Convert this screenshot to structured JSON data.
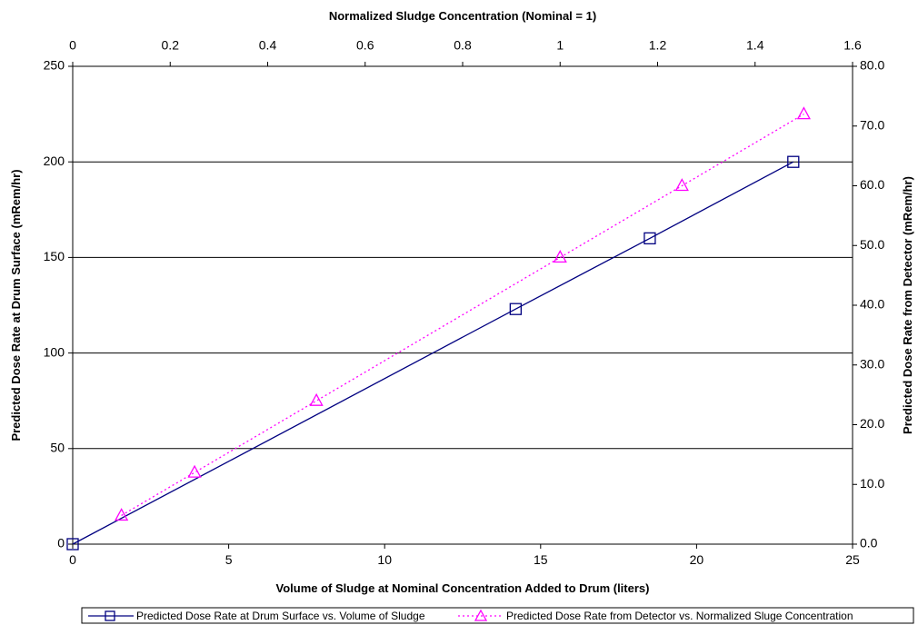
{
  "chart_data": {
    "type": "scatter",
    "title": "",
    "grid": true,
    "legend_placement": "bottom-right",
    "axes": {
      "x_bottom": {
        "label": "Volume of Sludge at Nominal Concentration Added to Drum (liters)",
        "range": [
          0,
          25
        ],
        "ticks": [
          "0",
          "5",
          "10",
          "15",
          "20",
          "25"
        ]
      },
      "x_top": {
        "label": "Normalized Sludge Concentration (Nominal = 1)",
        "range": [
          0,
          1.6
        ],
        "ticks": [
          "0",
          "0.2",
          "0.4",
          "0.6",
          "0.8",
          "1",
          "1.2",
          "1.4",
          "1.6"
        ]
      },
      "y_left": {
        "label": "Predicted Dose Rate at Drum Surface (mRem/hr)",
        "range": [
          0,
          250
        ],
        "ticks": [
          "0",
          "50",
          "100",
          "150",
          "200",
          "250"
        ]
      },
      "y_right": {
        "label": "Predicted Dose Rate from Detector (mRem/hr)",
        "range": [
          0,
          80
        ],
        "ticks": [
          "0.0",
          "10.0",
          "20.0",
          "30.0",
          "40.0",
          "50.0",
          "60.0",
          "70.0",
          "80.0"
        ]
      }
    },
    "series": [
      {
        "name": "Predicted Dose Rate at Drum Surface vs. Volume of Sludge",
        "x_axis": "x_bottom",
        "y_axis": "y_left",
        "color": "#000080",
        "line_style": "solid",
        "marker": "square",
        "points": [
          [
            0,
            0
          ],
          [
            14.2,
            123
          ],
          [
            18.5,
            160
          ],
          [
            23.1,
            200
          ]
        ]
      },
      {
        "name": "Predicted Dose Rate from Detector vs. Normalized Sluge Concentration",
        "x_axis": "x_top",
        "y_axis": "y_right",
        "color": "#ff00ff",
        "line_style": "dotted",
        "marker": "triangle",
        "points": [
          [
            0.1,
            4.8
          ],
          [
            0.25,
            12
          ],
          [
            0.5,
            24
          ],
          [
            1.0,
            48
          ],
          [
            1.25,
            60
          ],
          [
            1.5,
            72
          ]
        ]
      }
    ]
  }
}
